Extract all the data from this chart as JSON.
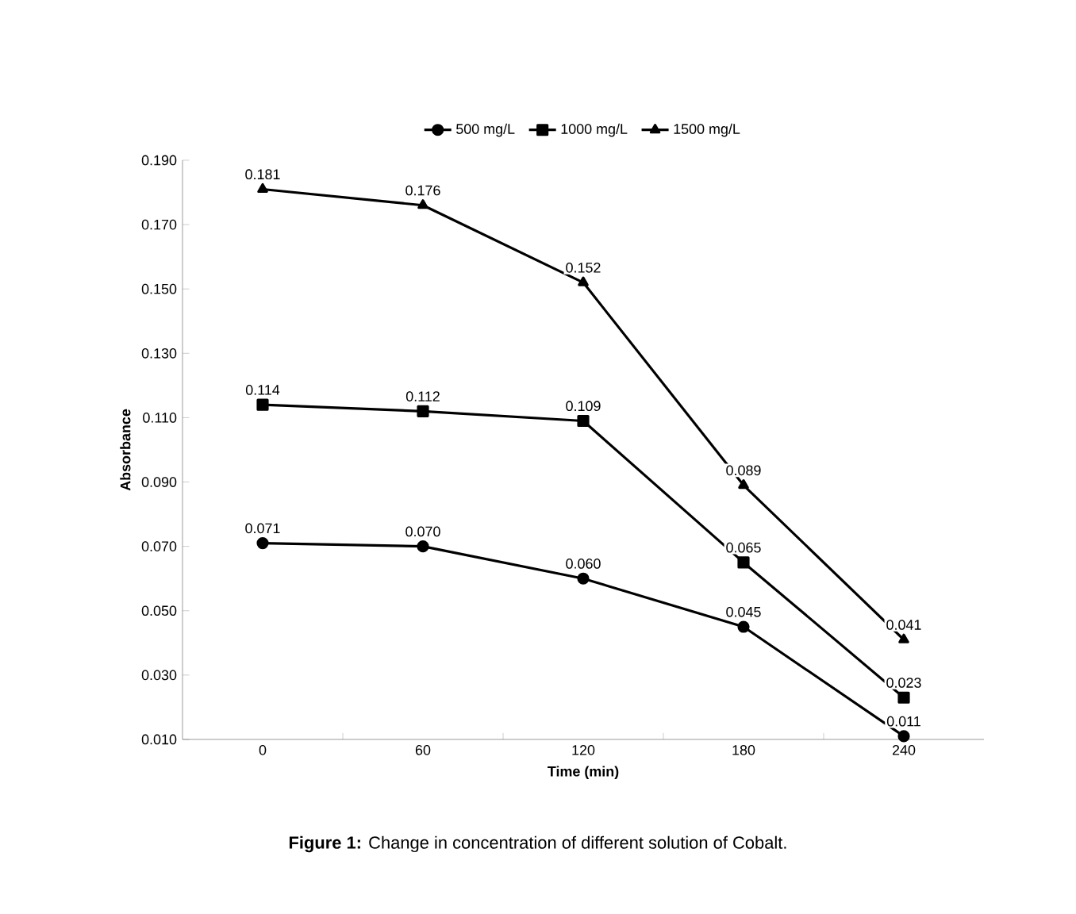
{
  "chart_data": {
    "type": "line",
    "xlabel": "Time (min)",
    "ylabel": "Absorbance",
    "categories": [
      "0",
      "60",
      "120",
      "180",
      "240"
    ],
    "ylim": [
      0.01,
      0.19
    ],
    "yticks": [
      {
        "value": 0.01,
        "label": "0.010"
      },
      {
        "value": 0.03,
        "label": "0.030"
      },
      {
        "value": 0.05,
        "label": "0.050"
      },
      {
        "value": 0.07,
        "label": "0.070"
      },
      {
        "value": 0.09,
        "label": "0.090"
      },
      {
        "value": 0.11,
        "label": "0.110"
      },
      {
        "value": 0.13,
        "label": "0.130"
      },
      {
        "value": 0.15,
        "label": "0.150"
      },
      {
        "value": 0.17,
        "label": "0.170"
      },
      {
        "value": 0.19,
        "label": "0.190"
      }
    ],
    "series": [
      {
        "name": "500 mg/L",
        "color": "#000000",
        "marker": "circle",
        "values": [
          0.071,
          0.07,
          0.06,
          0.045,
          0.011
        ],
        "value_labels": [
          "0.071",
          "0.070",
          "0.060",
          "0.045",
          "0.011"
        ]
      },
      {
        "name": "1000 mg/L",
        "color": "#000000",
        "marker": "square",
        "values": [
          0.114,
          0.112,
          0.109,
          0.065,
          0.023
        ],
        "value_labels": [
          "0.114",
          "0.112",
          "0.109",
          "0.065",
          "0.023"
        ]
      },
      {
        "name": "1500 mg/L",
        "color": "#000000",
        "marker": "triangle",
        "values": [
          0.181,
          0.176,
          0.152,
          0.089,
          0.041
        ],
        "value_labels": [
          "0.181",
          "0.176",
          "0.152",
          "0.089",
          "0.041"
        ]
      }
    ],
    "legend": "top",
    "grid": false,
    "line_style": "solid",
    "annotations": [
      "**Figure 1:** Change in concentration of different solution of Cobalt."
    ]
  }
}
